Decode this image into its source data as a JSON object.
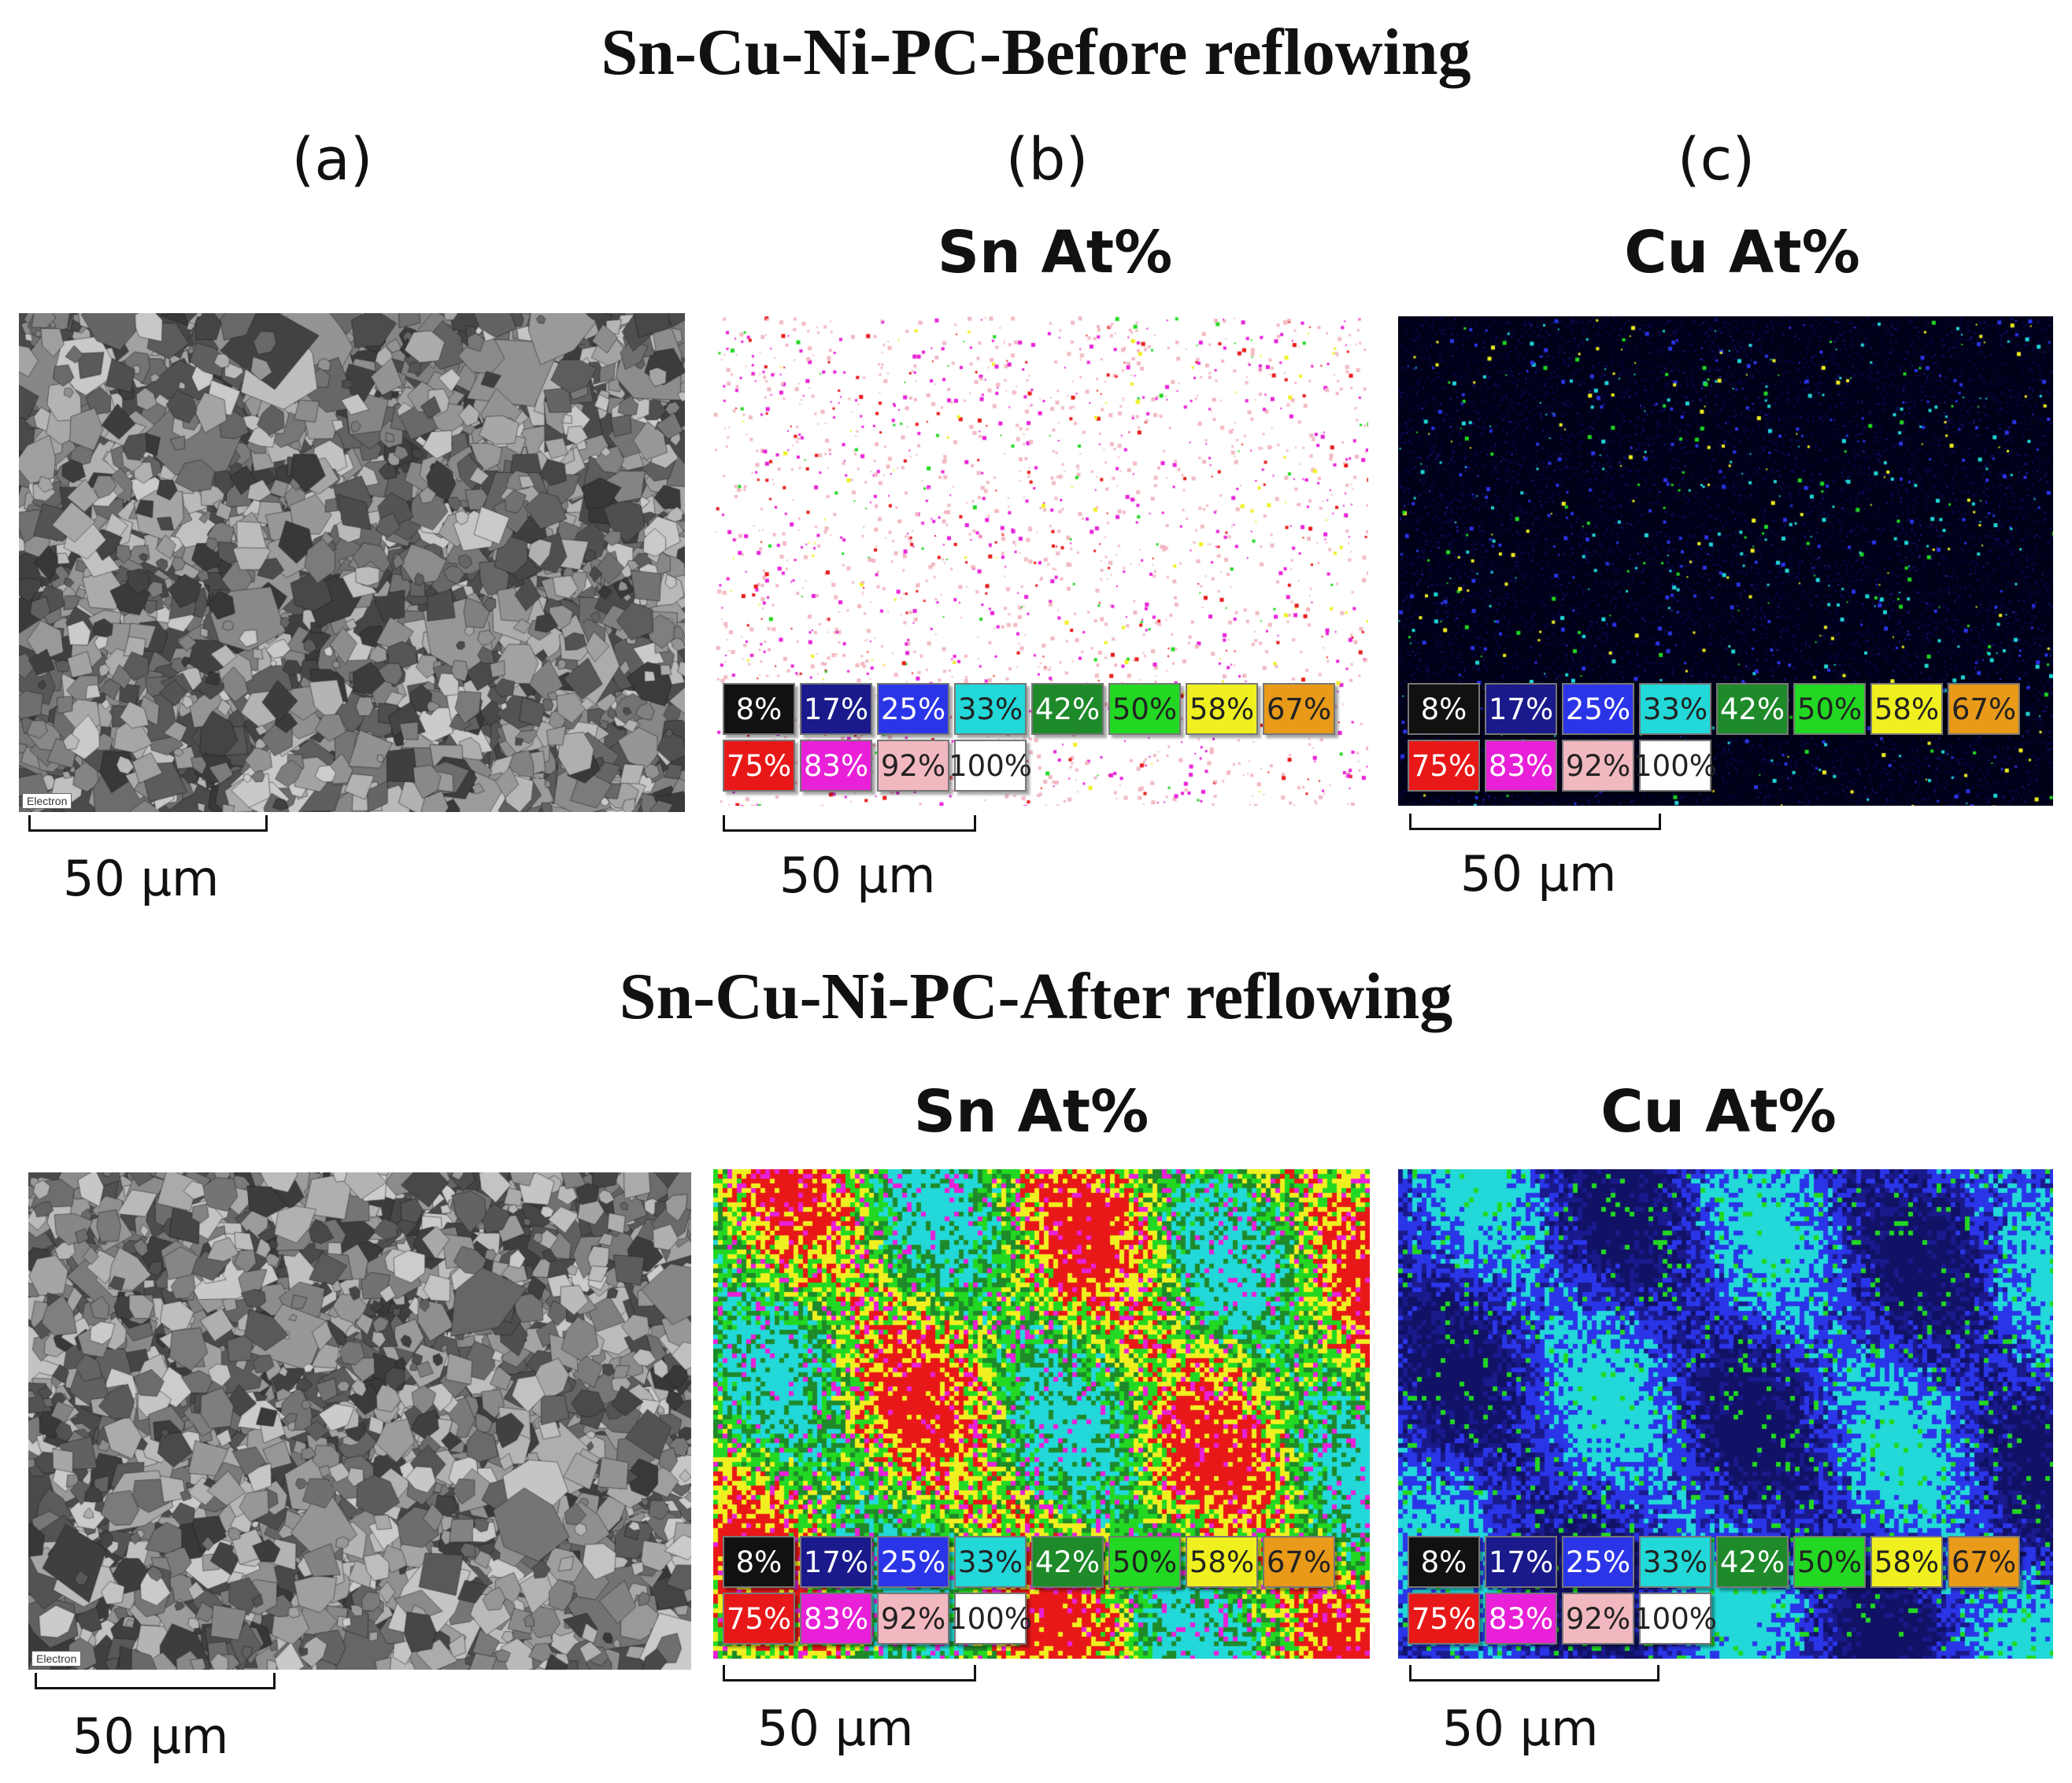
{
  "titles": {
    "before": "Sn-Cu-Ni-PC-Before reflowing",
    "after": "Sn-Cu-Ni-PC-After reflowing"
  },
  "subfigures": {
    "a": "(a)",
    "b": "(b)",
    "c": "(c)"
  },
  "elements": {
    "sn": "Sn At%",
    "cu": "Cu At%"
  },
  "sem_tag": "Electron",
  "scale_bar": "50 µm",
  "legend": [
    {
      "label": "8%",
      "color": "#111111"
    },
    {
      "label": "17%",
      "color": "#1a1a8c"
    },
    {
      "label": "25%",
      "color": "#2b35e8"
    },
    {
      "label": "33%",
      "color": "#22d8d8"
    },
    {
      "label": "42%",
      "color": "#1e8a2a"
    },
    {
      "label": "50%",
      "color": "#22d822"
    },
    {
      "label": "58%",
      "color": "#f0f020"
    },
    {
      "label": "67%",
      "color": "#e89a18"
    },
    {
      "label": "75%",
      "color": "#e81818"
    },
    {
      "label": "83%",
      "color": "#e820d8"
    },
    {
      "label": "92%",
      "color": "#f2b8c0"
    },
    {
      "label": "100%",
      "color": "#ffffff"
    }
  ]
}
